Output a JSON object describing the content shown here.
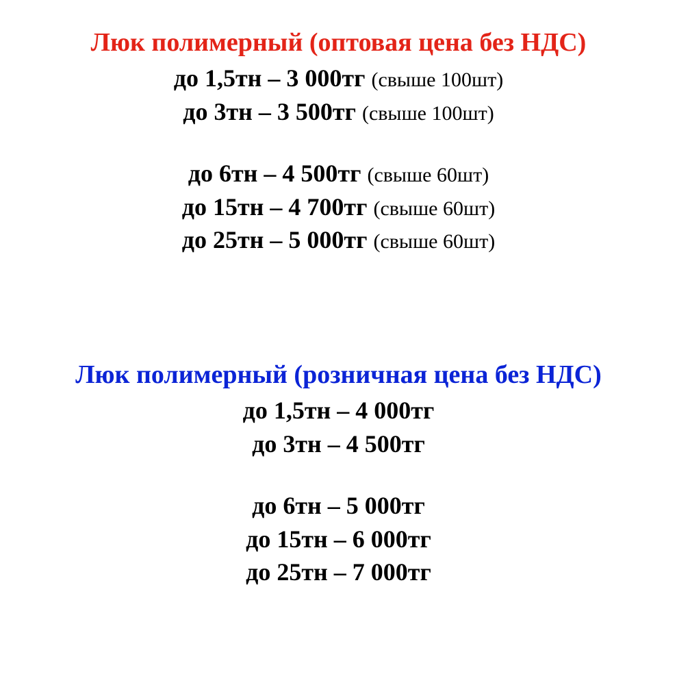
{
  "colors": {
    "wholesale_title": "#e32418",
    "retail_title": "#0b24d6",
    "body_text": "#000000",
    "background": "#ffffff"
  },
  "typography": {
    "title_fontsize": 38,
    "main_fontsize": 36,
    "note_fontsize": 30,
    "font_family": "Times New Roman"
  },
  "wholesale": {
    "title": "Люк полимерный  (оптовая цена без НДС)",
    "group1": [
      {
        "main": "до 1,5тн – 3 000тг ",
        "note": "(свыше 100шт)"
      },
      {
        "main": "до 3тн – 3 500тг ",
        "note": "(свыше 100шт)"
      }
    ],
    "group2": [
      {
        "main": "до 6тн – 4 500тг ",
        "note": "(свыше 60шт)"
      },
      {
        "main": "до 15тн – 4 700тг ",
        "note": "(свыше 60шт)"
      },
      {
        "main": "до 25тн – 5 000тг ",
        "note": "(свыше 60шт)"
      }
    ]
  },
  "retail": {
    "title": "Люк полимерный (розничная цена без НДС)",
    "group1": [
      {
        "main": "до 1,5тн – 4 000тг"
      },
      {
        "main": "до 3тн – 4 500тг"
      }
    ],
    "group2": [
      {
        "main": "до 6тн –  5 000тг"
      },
      {
        "main": "до 15тн – 6 000тг"
      },
      {
        "main": "до 25тн – 7 000тг"
      }
    ]
  }
}
